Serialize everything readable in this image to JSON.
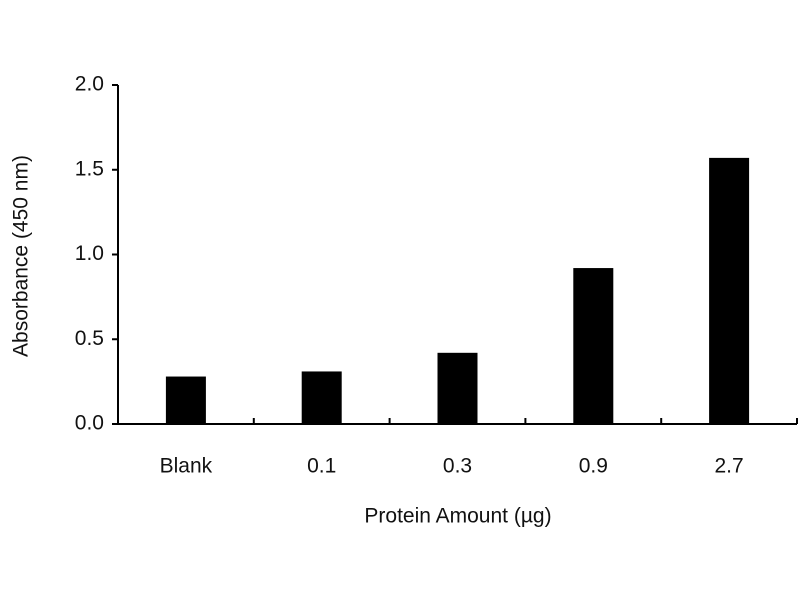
{
  "chart_data": {
    "type": "bar",
    "x_label": "Protein Amount (µg)",
    "y_label": "Absorbance (450 nm)",
    "categories": [
      "Blank",
      "0.1",
      "0.3",
      "0.9",
      "2.7"
    ],
    "values": [
      0.28,
      0.31,
      0.42,
      0.92,
      1.57
    ],
    "color": "#000000",
    "ylim": [
      0,
      2
    ],
    "yticks": [
      {
        "value": 0,
        "label": "0.0"
      },
      0.5,
      {
        "value": 1,
        "label": "1.0"
      },
      1.5,
      {
        "value": 2,
        "label": "2.0"
      }
    ],
    "grid": false
  }
}
